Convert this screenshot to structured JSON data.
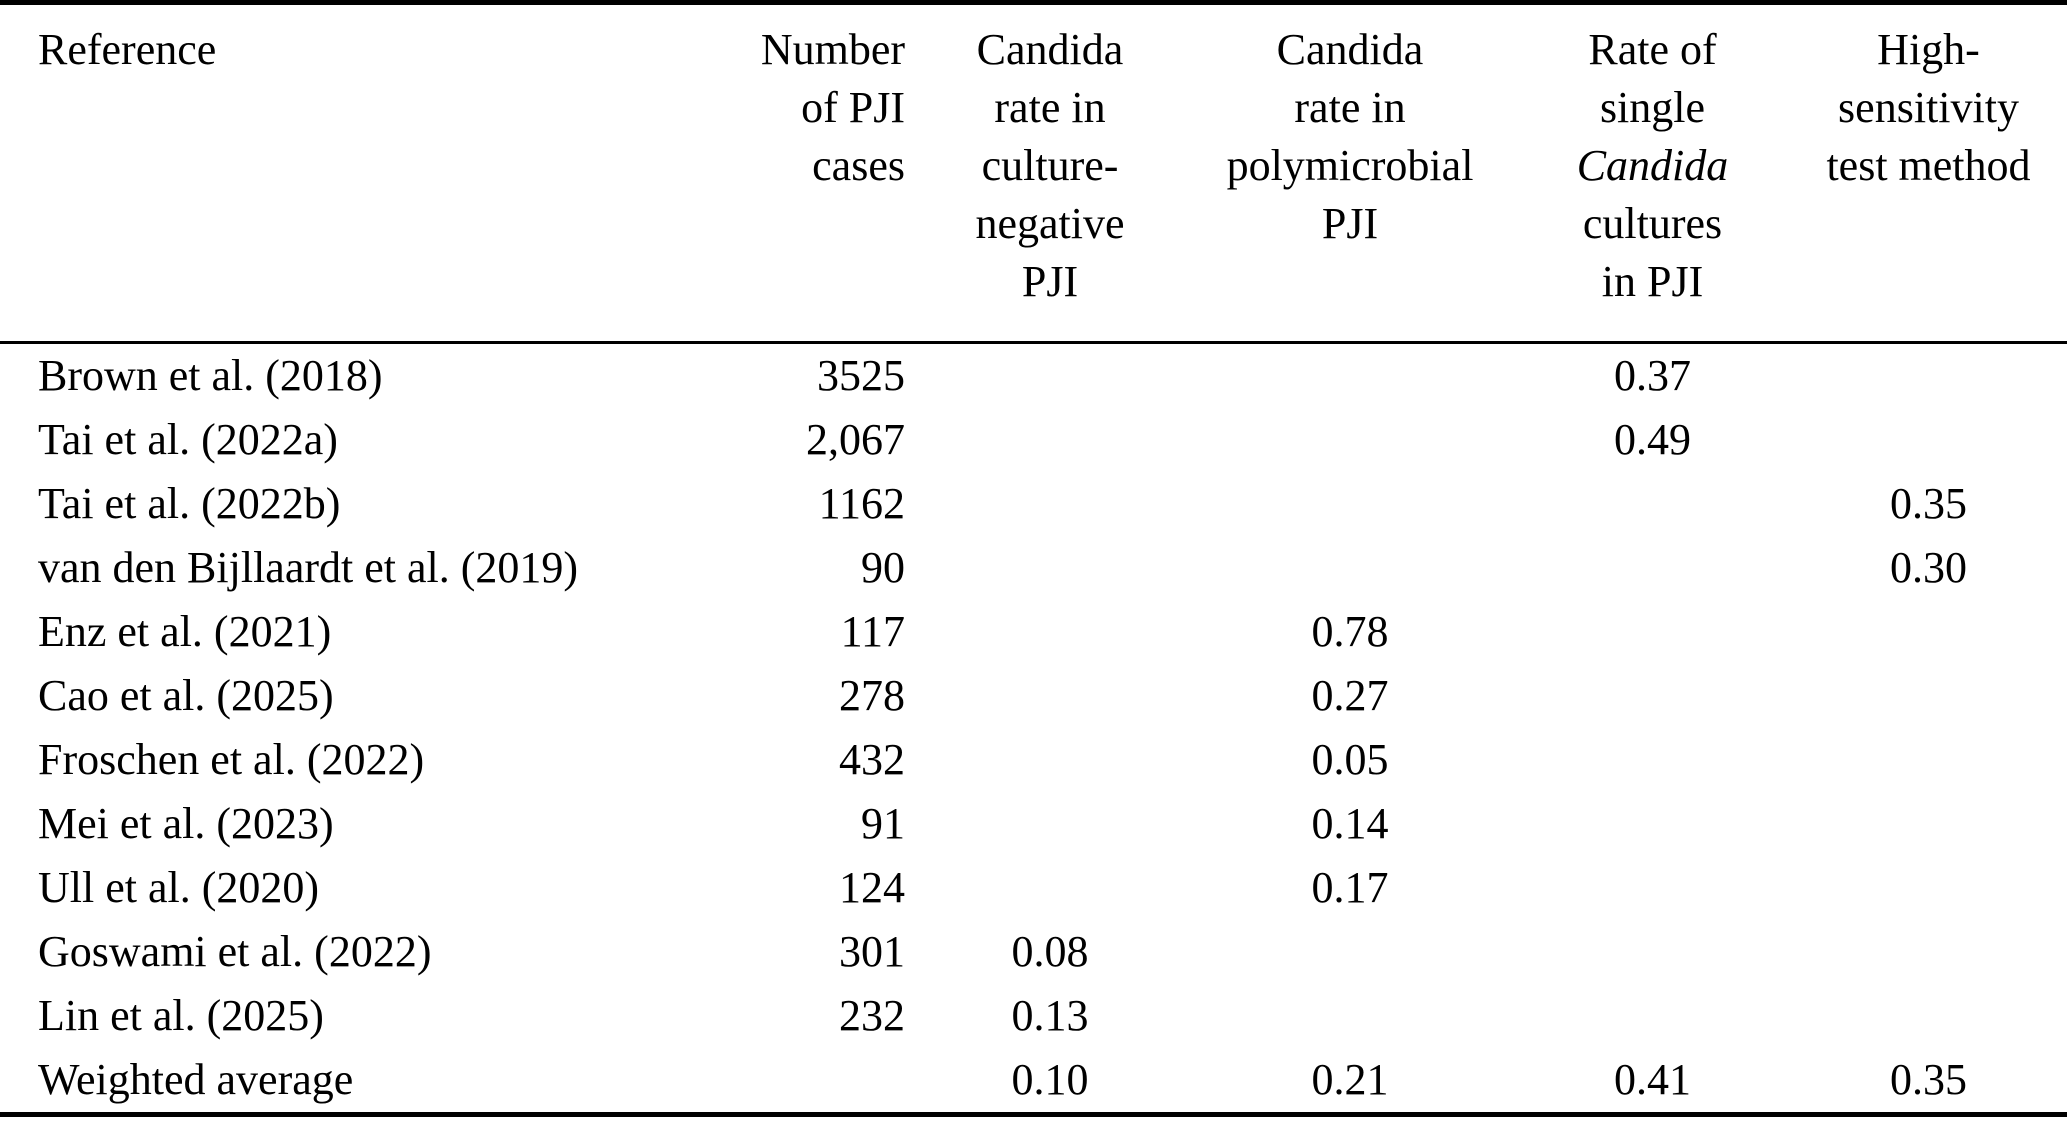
{
  "table": {
    "columns": [
      {
        "id": "reference",
        "align": "left",
        "header_lines": [
          "Reference"
        ]
      },
      {
        "id": "pji-cases",
        "align": "right",
        "header_lines": [
          "Number",
          "of PJI",
          "cases"
        ]
      },
      {
        "id": "culture-negative",
        "align": "center",
        "header_lines": [
          "Candida",
          "rate in",
          "culture-",
          "negative",
          "PJI"
        ]
      },
      {
        "id": "polymicrobial",
        "align": "center",
        "header_lines": [
          "Candida",
          "rate in",
          "polymicrobial",
          "PJI"
        ]
      },
      {
        "id": "single-candida",
        "align": "center",
        "header_lines": [
          "Rate of",
          "single",
          "Candida",
          "cultures",
          "in PJI"
        ],
        "italic_line_index": 2
      },
      {
        "id": "high-sensitivity",
        "align": "center",
        "header_lines": [
          "High-",
          "sensitivity",
          "test method"
        ]
      }
    ],
    "rows": [
      [
        "Brown et al. (2018)",
        "3525",
        "",
        "",
        "0.37",
        ""
      ],
      [
        "Tai et al. (2022a)",
        "2,067",
        "",
        "",
        "0.49",
        ""
      ],
      [
        "Tai et al. (2022b)",
        "1162",
        "",
        "",
        "",
        "0.35"
      ],
      [
        "van den Bijllaardt et al. (2019)",
        "90",
        "",
        "",
        "",
        "0.30"
      ],
      [
        "Enz et al. (2021)",
        "117",
        "",
        "0.78",
        "",
        ""
      ],
      [
        "Cao et al. (2025)",
        "278",
        "",
        "0.27",
        "",
        ""
      ],
      [
        "Froschen et al. (2022)",
        "432",
        "",
        "0.05",
        "",
        ""
      ],
      [
        "Mei et al. (2023)",
        "91",
        "",
        "0.14",
        "",
        ""
      ],
      [
        "Ull et al. (2020)",
        "124",
        "",
        "0.17",
        "",
        ""
      ],
      [
        "Goswami et al. (2022)",
        "301",
        "0.08",
        "",
        "",
        ""
      ],
      [
        "Lin et al. (2025)",
        "232",
        "0.13",
        "",
        "",
        ""
      ],
      [
        "Weighted average",
        "",
        "0.10",
        "0.21",
        "0.41",
        "0.35"
      ]
    ],
    "colors": {
      "text": "#000000",
      "background": "#ffffff",
      "rule": "#000000"
    }
  }
}
